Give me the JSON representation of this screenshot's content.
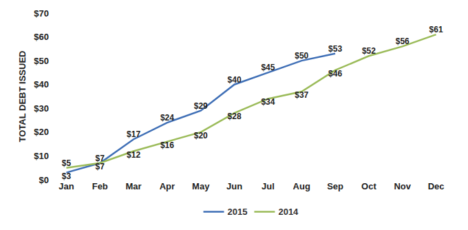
{
  "chart_data": {
    "type": "line",
    "y_label": "TOTAL DEBT ISSUED",
    "categories": [
      "Jan",
      "Feb",
      "Mar",
      "Apr",
      "May",
      "Jun",
      "Jul",
      "Aug",
      "Sep",
      "Oct",
      "Nov",
      "Dec"
    ],
    "series": [
      {
        "name": "2015",
        "color": "#3f6fb6",
        "values": [
          3,
          7,
          17,
          24,
          29,
          40,
          45,
          50,
          53,
          null,
          null,
          null
        ],
        "value_labels": [
          "$3",
          "$7",
          "$17",
          "$24",
          "$29",
          "$40",
          "$45",
          "$50",
          "$53",
          null,
          null,
          null
        ]
      },
      {
        "name": "2014",
        "color": "#9bbb59",
        "values": [
          5,
          7,
          12,
          16,
          20,
          28,
          34,
          37,
          46,
          52,
          56,
          61
        ],
        "value_labels": [
          "$5",
          "$7",
          "$12",
          "$16",
          "$20",
          "$28",
          "$34",
          "$37",
          "$46",
          "$52",
          "$56",
          "$61"
        ]
      }
    ],
    "ylim": [
      0,
      70
    ],
    "yticks": [
      {
        "value": 0,
        "label": "$0"
      },
      {
        "value": 10,
        "label": "$10"
      },
      {
        "value": 20,
        "label": "$20"
      },
      {
        "value": 30,
        "label": "$30"
      },
      {
        "value": 40,
        "label": "$40"
      },
      {
        "value": 50,
        "label": "$50"
      },
      {
        "value": 60,
        "label": "$60"
      },
      {
        "value": 70,
        "label": "$70"
      }
    ],
    "grid": false,
    "legend": "bottom",
    "data_labels": true
  }
}
